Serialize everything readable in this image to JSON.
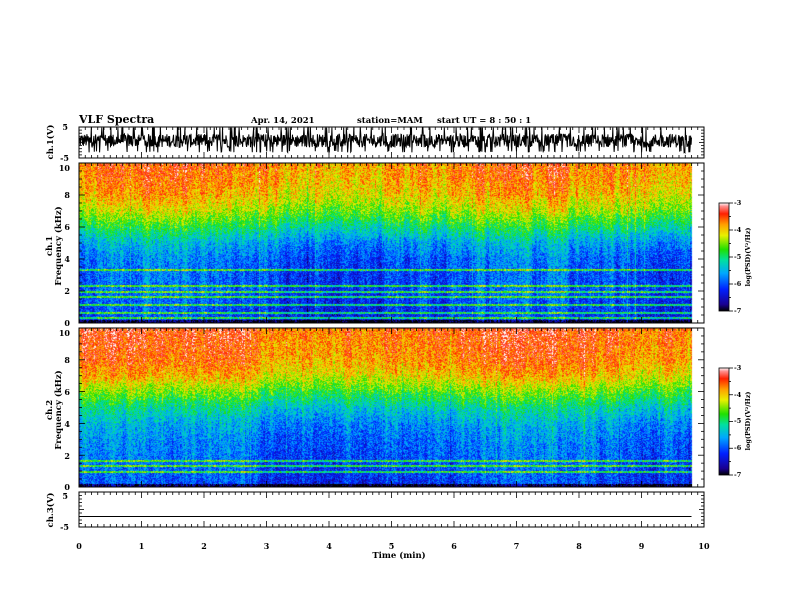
{
  "header": {
    "title": "VLF Spectra",
    "date": "Apr. 14, 2021",
    "station": "station=MAM",
    "start": "start UT =  8 : 50 : 1"
  },
  "chart_data": [
    {
      "type": "line",
      "panel": "ch1-waveform",
      "ylabel": "ch.1(V)",
      "ylim": [
        -5,
        5
      ],
      "yticks": [
        "5",
        "-5"
      ],
      "xlim": [
        0,
        10
      ],
      "waveform": "dense noise, roughly -3 to +5 V over 0–9.8 min"
    },
    {
      "type": "heatmap",
      "panel": "ch1-spectrogram",
      "ylabel": "ch.1\nFrequency (kHz)",
      "ylim": [
        0,
        10
      ],
      "yticks": [
        "0",
        "2",
        "4",
        "6",
        "8",
        "10"
      ],
      "xlim": [
        0,
        10
      ],
      "x_data_end": 9.8,
      "colorbar": {
        "label": "log(PSD)(V²/Hz)",
        "range": [
          -7,
          -3
        ],
        "ticks": [
          "-3",
          "-4",
          "-5",
          "-6",
          "-7"
        ]
      },
      "profile_freq_khz": [
        0,
        1,
        2,
        3,
        4,
        5,
        5.5,
        6,
        6.5,
        7,
        8,
        9,
        10
      ],
      "profile_log_psd": [
        -6.2,
        -6.1,
        -6.0,
        -6.0,
        -5.9,
        -5.6,
        -5.3,
        -5.0,
        -4.7,
        -4.4,
        -4.0,
        -3.8,
        -3.7
      ],
      "lines_khz": [
        0.3,
        0.6,
        1.1,
        1.6,
        1.9,
        2.3,
        3.3
      ]
    },
    {
      "type": "heatmap",
      "panel": "ch2-spectrogram",
      "ylabel": "ch.2\nFrequency (kHz)",
      "ylim": [
        0,
        10
      ],
      "yticks": [
        "0",
        "2",
        "4",
        "6",
        "8",
        "10"
      ],
      "xlim": [
        0,
        10
      ],
      "x_data_end": 9.8,
      "colorbar": {
        "label": "log(PSD)(V²/Hz)",
        "range": [
          -7,
          -3
        ],
        "ticks": [
          "-3",
          "-4",
          "-5",
          "-6",
          "-7"
        ]
      },
      "profile_freq_khz": [
        0,
        1,
        2,
        3,
        4,
        5,
        5.5,
        6,
        6.5,
        7,
        8,
        9,
        10
      ],
      "profile_log_psd": [
        -6.1,
        -6.0,
        -5.9,
        -5.8,
        -5.6,
        -5.2,
        -4.9,
        -4.6,
        -4.3,
        -4.0,
        -3.7,
        -3.6,
        -3.5
      ],
      "lines_khz": [
        0.9,
        1.3,
        1.6
      ]
    },
    {
      "type": "line",
      "panel": "ch3-waveform",
      "ylabel": "ch.3(V)",
      "ylim": [
        -5,
        5
      ],
      "yticks": [
        "5",
        "-5"
      ],
      "xlim": [
        0,
        10
      ],
      "xticks": [
        "0",
        "1",
        "2",
        "3",
        "4",
        "5",
        "6",
        "7",
        "8",
        "9",
        "10"
      ],
      "xlabel": "Time (min)",
      "constant_value": -2.0
    }
  ]
}
